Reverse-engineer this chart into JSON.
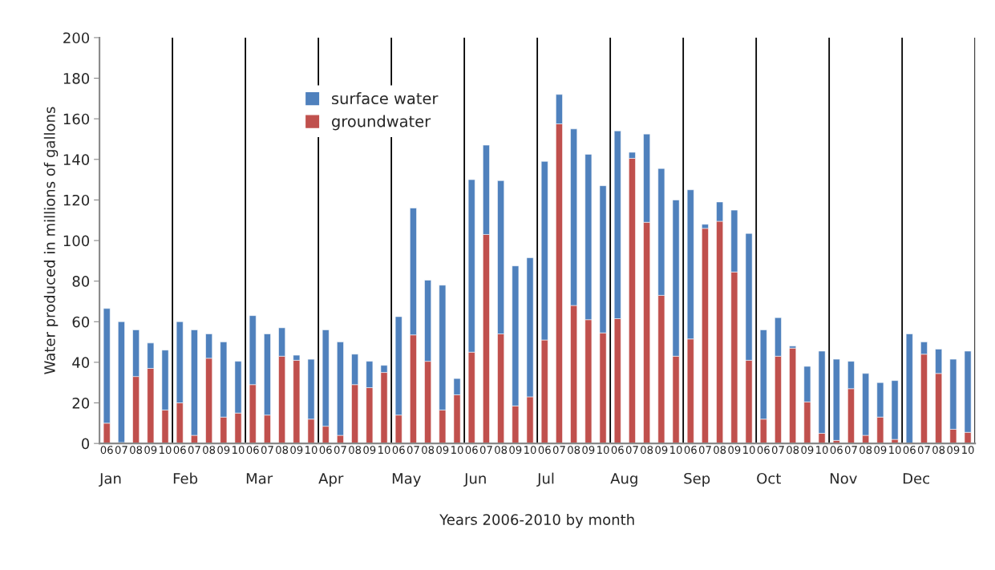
{
  "chart_data": {
    "type": "bar",
    "stacked": true,
    "xlabel": "Years 2006-2010 by month",
    "ylabel": "Water produced in millions of gallons",
    "categories": [
      "06",
      "07",
      "08",
      "09",
      "10",
      "06",
      "07",
      "08",
      "09",
      "10",
      "06",
      "07",
      "08",
      "09",
      "10",
      "06",
      "07",
      "08",
      "09",
      "10",
      "06",
      "07",
      "08",
      "09",
      "10",
      "06",
      "07",
      "08",
      "09",
      "10",
      "06",
      "07",
      "08",
      "09",
      "10",
      "06",
      "07",
      "08",
      "09",
      "10",
      "06",
      "07",
      "08",
      "09",
      "10",
      "06",
      "07",
      "08",
      "09",
      "10",
      "06",
      "07",
      "08",
      "09",
      "10",
      "06",
      "07",
      "08",
      "09",
      "10"
    ],
    "series": [
      {
        "name": "groundwater",
        "color": "#c0504d",
        "values": [
          10,
          0.5,
          33,
          37,
          16.5,
          20,
          4,
          42,
          13,
          15,
          29,
          14,
          43,
          41,
          12,
          8.5,
          4,
          29,
          27.5,
          35,
          14,
          53.5,
          40.5,
          16.5,
          24,
          45,
          103,
          54,
          18.5,
          23,
          51,
          157.5,
          68,
          61,
          54.5,
          61.5,
          140.5,
          109,
          73,
          43,
          51.5,
          106,
          109.5,
          84.5,
          41,
          12,
          43,
          47,
          20.5,
          5,
          1.5,
          27,
          4,
          13,
          2,
          0,
          44,
          34.5,
          7,
          5.5
        ]
      },
      {
        "name": "surface water",
        "color": "#4f81bd",
        "values": [
          56.5,
          59.5,
          23,
          12.5,
          29.5,
          40,
          52,
          12,
          37,
          25.5,
          34,
          40,
          14,
          2.5,
          29.5,
          47.5,
          46,
          15,
          13,
          3.5,
          48.5,
          62.5,
          40,
          61.5,
          8,
          85,
          44,
          75.5,
          69,
          68.5,
          88,
          14.5,
          87,
          81.5,
          72.5,
          92.5,
          3,
          43.5,
          62.5,
          77,
          73.5,
          2,
          9.5,
          30.5,
          62.5,
          44,
          19,
          1,
          17.5,
          40.5,
          40,
          13.5,
          30.5,
          17,
          29,
          54,
          6,
          12,
          34.5,
          40
        ]
      }
    ],
    "annotations": [
      "Jan",
      "Feb",
      "Mar",
      "Apr",
      "May",
      "Jun",
      "Jul",
      "Aug",
      "Sep",
      "Oct",
      "Nov",
      "Dec"
    ],
    "ylim": [
      0,
      200
    ],
    "yticks": [
      0,
      20,
      40,
      60,
      80,
      100,
      120,
      140,
      160,
      180,
      200
    ],
    "grid": false,
    "legend": "top left"
  }
}
